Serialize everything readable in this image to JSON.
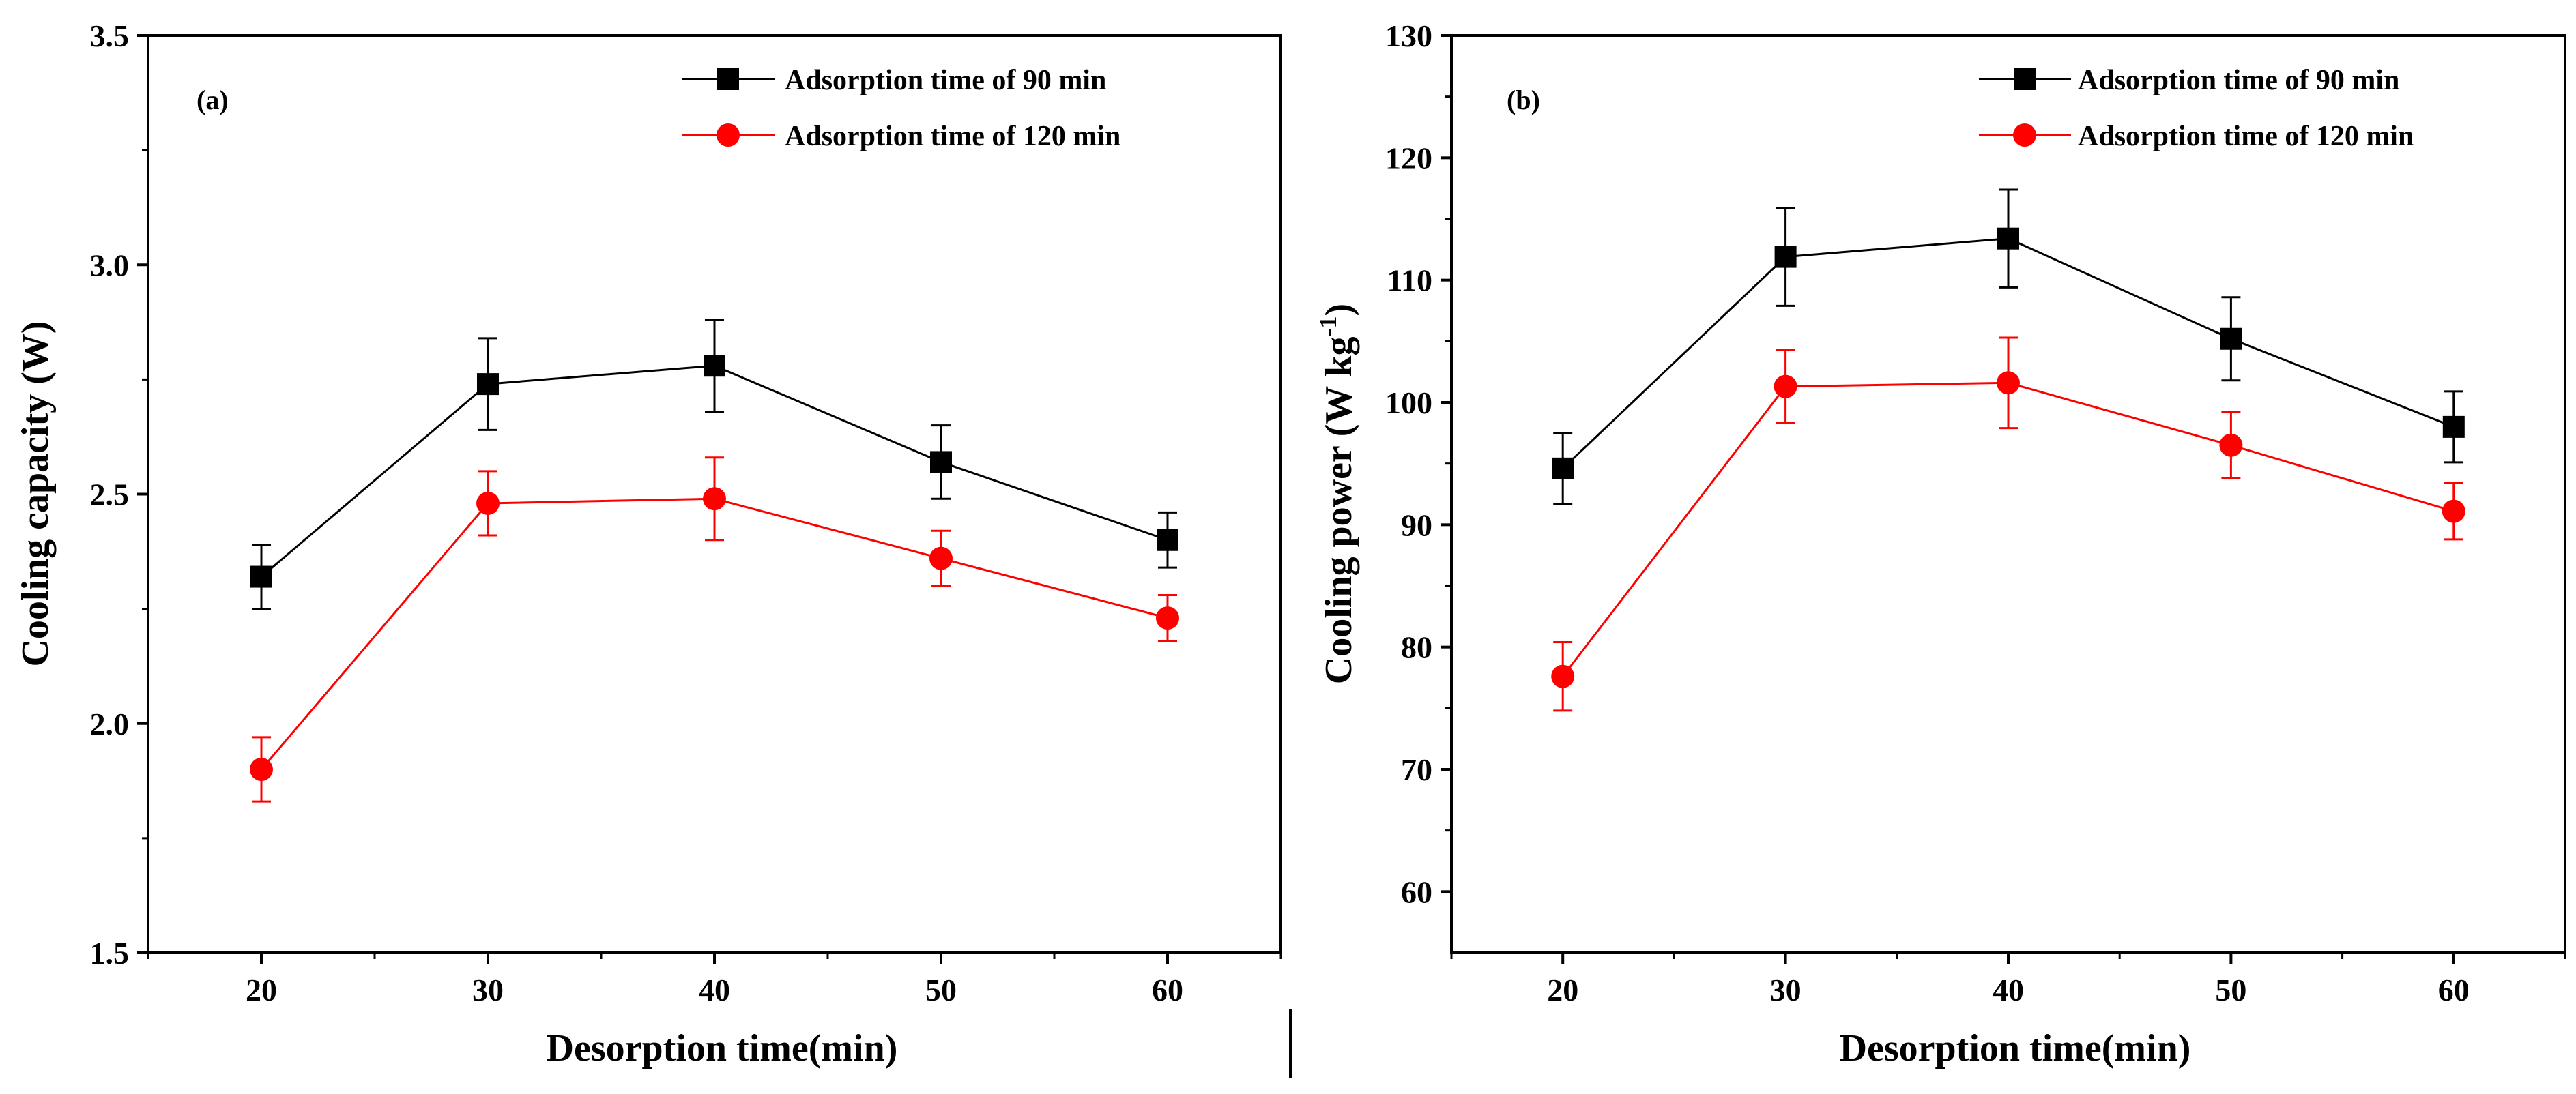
{
  "chart_data": [
    {
      "type": "line",
      "panel_label": "(a)",
      "title": "",
      "xlabel": "Desorption time(min)",
      "ylabel": "Cooling capacity (W)",
      "x": [
        20,
        30,
        40,
        50,
        60
      ],
      "xlim": [
        15,
        65
      ],
      "ylim": [
        1.5,
        3.5
      ],
      "xticks": [
        "20",
        "30",
        "40",
        "50",
        "60"
      ],
      "yticks": [
        "1.5",
        "2.0",
        "2.5",
        "3.0",
        "3.5"
      ],
      "ytick_values": [
        1.5,
        2.0,
        2.5,
        3.0,
        3.5
      ],
      "xtick_values": [
        20,
        30,
        40,
        50,
        60
      ],
      "legend_position": "top-right",
      "series": [
        {
          "name": "Adsorption time of 90 min",
          "color": "#000000",
          "marker": "square",
          "values": [
            2.32,
            2.74,
            2.78,
            2.57,
            2.4
          ],
          "errors": [
            0.07,
            0.1,
            0.1,
            0.08,
            0.06
          ]
        },
        {
          "name": "Adsorption time of 120 min",
          "color": "#ff0000",
          "marker": "circle",
          "values": [
            1.9,
            2.48,
            2.49,
            2.36,
            2.23
          ],
          "errors": [
            0.07,
            0.07,
            0.09,
            0.06,
            0.05
          ]
        }
      ]
    },
    {
      "type": "line",
      "panel_label": "(b)",
      "title": "",
      "xlabel": "Desorption time(min)",
      "ylabel": "Cooling power (W kg",
      "ylabel_superscript": "-1",
      "ylabel_suffix": ")",
      "x": [
        20,
        30,
        40,
        50,
        60
      ],
      "xlim": [
        15,
        65
      ],
      "ylim": [
        55,
        130
      ],
      "xticks": [
        "20",
        "30",
        "40",
        "50",
        "60"
      ],
      "yticks": [
        "60",
        "70",
        "80",
        "90",
        "100",
        "110",
        "120",
        "130"
      ],
      "ytick_values": [
        60,
        70,
        80,
        90,
        100,
        110,
        120,
        130
      ],
      "xtick_values": [
        20,
        30,
        40,
        50,
        60
      ],
      "legend_position": "top-right",
      "series": [
        {
          "name": "Adsorption time of 90 min",
          "color": "#000000",
          "marker": "square",
          "values": [
            94.6,
            111.9,
            113.4,
            105.2,
            98.0
          ],
          "errors": [
            2.9,
            4.0,
            4.0,
            3.4,
            2.9
          ]
        },
        {
          "name": "Adsorption time of 120 min",
          "color": "#ff0000",
          "marker": "circle",
          "values": [
            77.6,
            101.3,
            101.6,
            96.5,
            91.1
          ],
          "errors": [
            2.8,
            3.0,
            3.7,
            2.7,
            2.3
          ]
        }
      ]
    }
  ]
}
